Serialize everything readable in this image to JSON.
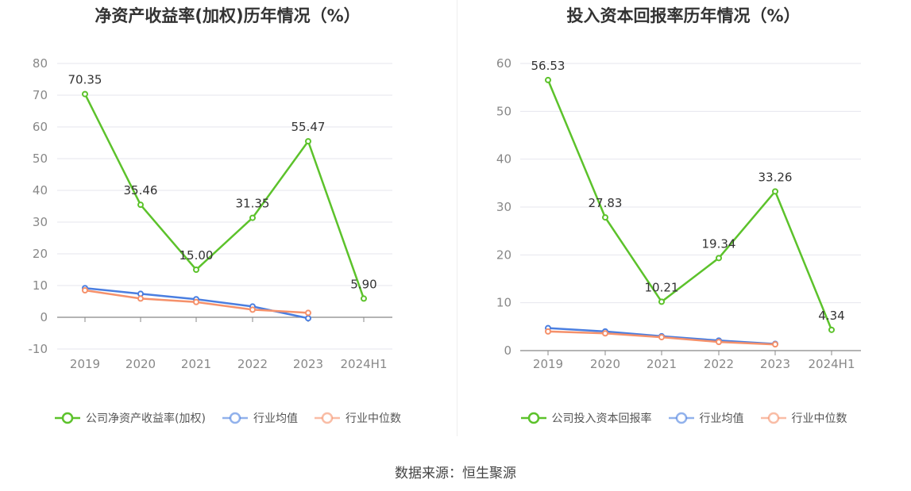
{
  "source_text": "数据来源：恒生聚源",
  "colors": {
    "company": "#5cc22b",
    "industry_avg": "#4a7ee0",
    "industry_median": "#f5916b",
    "grid": "#e6e6ee",
    "axis": "#888888",
    "tick_text": "#888888",
    "label_text": "#333333"
  },
  "chart_data": [
    {
      "type": "line",
      "title": "净资产收益率(加权)历年情况（%）",
      "categories": [
        "2019",
        "2020",
        "2021",
        "2022",
        "2023",
        "2024H1"
      ],
      "ylim": [
        -10,
        80
      ],
      "yticks": [
        -10,
        0,
        10,
        20,
        30,
        40,
        50,
        60,
        70,
        80
      ],
      "grid": true,
      "legend_position": "bottom",
      "series": [
        {
          "name": "公司净资产收益率(加权)",
          "key": "company",
          "values": [
            70.35,
            35.46,
            15.0,
            31.35,
            55.47,
            5.9
          ],
          "labels": [
            "70.35",
            "35.46",
            "15.00",
            "31.35",
            "55.47",
            "5.90"
          ]
        },
        {
          "name": "行业均值",
          "key": "industry_avg",
          "values": [
            9.2,
            7.4,
            5.7,
            3.4,
            -0.3,
            null
          ]
        },
        {
          "name": "行业中位数",
          "key": "industry_median",
          "values": [
            8.5,
            5.9,
            4.8,
            2.4,
            1.4,
            null
          ]
        }
      ]
    },
    {
      "type": "line",
      "title": "投入资本回报率历年情况（%）",
      "categories": [
        "2019",
        "2020",
        "2021",
        "2022",
        "2023",
        "2024H1"
      ],
      "ylim": [
        0,
        60
      ],
      "yticks": [
        0,
        10,
        20,
        30,
        40,
        50,
        60
      ],
      "grid": true,
      "legend_position": "bottom",
      "series": [
        {
          "name": "公司投入资本回报率",
          "key": "company",
          "values": [
            56.53,
            27.83,
            10.21,
            19.34,
            33.26,
            4.34
          ],
          "labels": [
            "56.53",
            "27.83",
            "10.21",
            "19.34",
            "33.26",
            "4.34"
          ]
        },
        {
          "name": "行业均值",
          "key": "industry_avg",
          "values": [
            4.7,
            4.0,
            3.0,
            2.1,
            1.4,
            null
          ]
        },
        {
          "name": "行业中位数",
          "key": "industry_median",
          "values": [
            4.0,
            3.6,
            2.8,
            1.8,
            1.3,
            null
          ]
        }
      ]
    }
  ]
}
